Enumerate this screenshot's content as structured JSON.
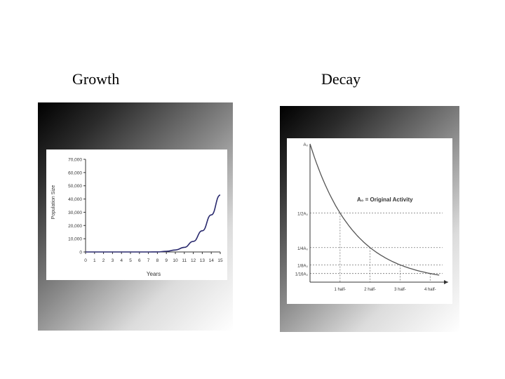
{
  "headings": {
    "growth": "Growth",
    "decay": "Decay"
  },
  "chart_data": [
    {
      "type": "line",
      "title": "",
      "xlabel": "Years",
      "ylabel": "Population Size",
      "x": [
        0,
        1,
        2,
        3,
        4,
        5,
        6,
        7,
        8,
        9,
        10,
        11,
        12,
        13,
        14,
        15
      ],
      "values": [
        0,
        0,
        0,
        0,
        0,
        1,
        2,
        6,
        20,
        500,
        1500,
        3500,
        8000,
        16000,
        28000,
        43000
      ],
      "xticks": [
        "0",
        "1",
        "2",
        "3",
        "4",
        "5",
        "6",
        "7",
        "8",
        "9",
        "10",
        "11",
        "12",
        "13",
        "14",
        "15"
      ],
      "yticks": [
        "0",
        "10,000",
        "20,000",
        "30,000",
        "40,000",
        "50,000",
        "60,000",
        "70,000"
      ],
      "ylim": [
        0,
        70000
      ],
      "grid": false,
      "color": "#2a2a6e"
    },
    {
      "type": "line",
      "title": "",
      "xlabel": "",
      "ylabel": "",
      "annotation": "A₀ = Original Activity",
      "x": [
        0,
        1,
        2,
        3,
        4
      ],
      "values": [
        1,
        0.5,
        0.25,
        0.125,
        0.0625
      ],
      "xticks": [
        "1 half-",
        "2 half-",
        "3 half-",
        "4 half-"
      ],
      "yticks": [
        "A₀",
        "1/2A₀",
        "1/4A₀",
        "1/8A₀",
        "1/16A₀"
      ],
      "ylim": [
        0,
        1
      ],
      "grid": false,
      "color": "#555555"
    }
  ]
}
